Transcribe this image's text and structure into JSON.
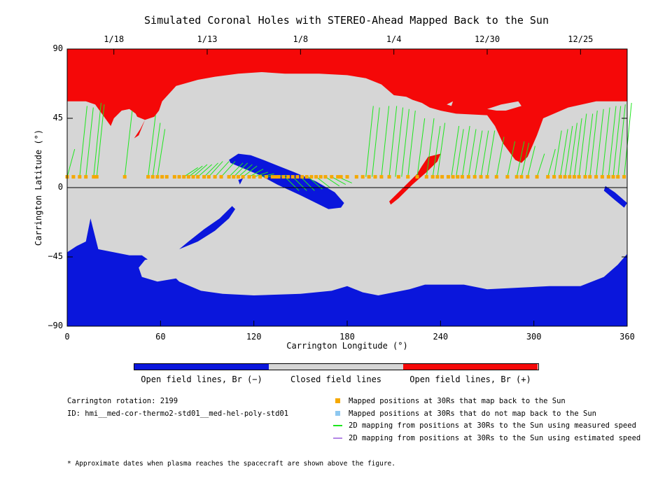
{
  "chart_data": {
    "type": "map",
    "title": "Simulated Coronal Holes with STEREO-Ahead Mapped Back to the Sun",
    "xlabel": "Carrington Longitude (°)",
    "ylabel": "Carrington Latitude (°)",
    "xlim": [
      0,
      360
    ],
    "ylim": [
      -90,
      90
    ],
    "x_ticks": [
      "0",
      "60",
      "120",
      "180",
      "240",
      "300",
      "360"
    ],
    "y_ticks": [
      "90",
      "45",
      "0",
      "−45",
      "−90"
    ],
    "top_dates": [
      {
        "label": "1/18",
        "lon": 30
      },
      {
        "label": "1/13",
        "lon": 90
      },
      {
        "label": "1/8",
        "lon": 150
      },
      {
        "label": "1/4",
        "lon": 210
      },
      {
        "label": "12/30",
        "lon": 270
      },
      {
        "label": "12/25",
        "lon": 330
      }
    ],
    "colors": {
      "open_negative": "#0a16dc",
      "closed": "#d6d6d6",
      "open_positive": "#f50808",
      "mapped": "#f5a800",
      "unmapped": "#8ec8f0",
      "measured_speed": "#1ee61e",
      "estimated_speed": "#b486e6"
    },
    "colorbar_labels": [
      "Open field lines, Br (−)",
      "Closed field lines",
      "Open field lines, Br (+)"
    ],
    "spacecraft_latitude": 7,
    "mapped_longitudes": [
      0,
      4,
      8,
      12,
      17,
      19,
      37,
      52,
      55,
      58,
      61,
      64,
      69,
      72,
      75,
      78,
      81,
      84,
      88,
      91,
      95,
      99,
      104,
      107,
      110,
      113,
      117,
      120,
      124,
      128,
      132,
      134,
      136,
      139,
      142,
      145,
      148,
      151,
      154,
      157,
      160,
      163,
      166,
      170,
      174,
      176,
      180,
      186,
      190,
      194,
      198,
      202,
      207,
      213,
      219,
      225,
      231,
      235,
      238,
      241,
      245,
      248,
      251,
      254,
      258,
      262,
      266,
      270,
      276,
      283,
      289,
      292,
      296,
      302,
      309,
      313,
      317,
      320,
      323,
      326,
      329,
      333,
      336,
      340,
      344,
      348,
      351,
      354,
      358
    ],
    "field_line_endpoints": [
      [
        0,
        25
      ],
      [
        8,
        53
      ],
      [
        12,
        52
      ],
      [
        17,
        55
      ],
      [
        19,
        54
      ],
      [
        37,
        50
      ],
      [
        52,
        47
      ],
      [
        55,
        42
      ],
      [
        58,
        38
      ],
      [
        247,
        40
      ],
      [
        250,
        38
      ],
      [
        254,
        40
      ],
      [
        258,
        38
      ],
      [
        262,
        37
      ],
      [
        266,
        37
      ],
      [
        270,
        37
      ],
      [
        276,
        33
      ],
      [
        283,
        30
      ],
      [
        289,
        30
      ],
      [
        292,
        29
      ],
      [
        296,
        27
      ],
      [
        302,
        22
      ],
      [
        309,
        25
      ],
      [
        192,
        53
      ],
      [
        196,
        52
      ],
      [
        202,
        53
      ],
      [
        207,
        53
      ],
      [
        211,
        52
      ],
      [
        215,
        51
      ],
      [
        219,
        50
      ],
      [
        225,
        45
      ],
      [
        231,
        45
      ],
      [
        235,
        40
      ],
      [
        238,
        42
      ],
      [
        313,
        37
      ],
      [
        317,
        38
      ],
      [
        320,
        40
      ],
      [
        323,
        42
      ],
      [
        326,
        45
      ],
      [
        329,
        48
      ],
      [
        333,
        48
      ],
      [
        336,
        50
      ],
      [
        340,
        51
      ],
      [
        344,
        52
      ],
      [
        348,
        53
      ],
      [
        351,
        53
      ],
      [
        354,
        54
      ],
      [
        358,
        55
      ],
      [
        75,
        13
      ],
      [
        78,
        14
      ],
      [
        81,
        15
      ],
      [
        84,
        15
      ],
      [
        88,
        16
      ],
      [
        91,
        17
      ],
      [
        95,
        17
      ],
      [
        99,
        17
      ],
      [
        104,
        16
      ],
      [
        107,
        16
      ],
      [
        110,
        15
      ],
      [
        113,
        14
      ],
      [
        117,
        12
      ],
      [
        120,
        10
      ],
      [
        124,
        9
      ],
      [
        128,
        8
      ],
      [
        132,
        8
      ],
      [
        140,
        -2
      ],
      [
        145,
        -2
      ],
      [
        150,
        -2
      ],
      [
        155,
        -1
      ],
      [
        160,
        0
      ],
      [
        166,
        1
      ],
      [
        170,
        2
      ],
      [
        174,
        3
      ]
    ]
  },
  "colorbar": {
    "neg_label": "Open field lines, Br (−)",
    "closed_label": "Closed field lines",
    "pos_label": "Open field lines, Br (+)"
  },
  "info": {
    "rotation": "Carrington rotation: 2199",
    "id": "ID: hmi__med-cor-thermo2-std01__med-hel-poly-std01"
  },
  "legend": {
    "mapped": "Mapped positions at 30Rs that map back to the Sun",
    "unmapped": "Mapped positions at 30Rs that do not map back to the Sun",
    "measured": "2D mapping from positions at 30Rs to the Sun using measured speed",
    "estimated": "2D mapping from positions at 30Rs to the Sun using estimated speed"
  },
  "footnote": "* Approximate dates when plasma reaches the spacecraft are shown above the figure."
}
